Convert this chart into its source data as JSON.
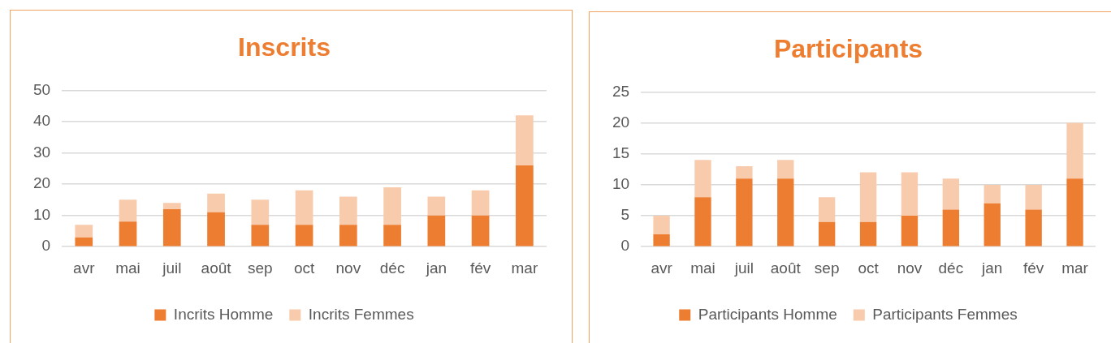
{
  "chart_data": [
    {
      "type": "bar",
      "title": "Inscrits",
      "categories": [
        "avr",
        "mai",
        "juil",
        "août",
        "sep",
        "oct",
        "nov",
        "déc",
        "jan",
        "fév",
        "mar"
      ],
      "series": [
        {
          "name": "Incrits Homme",
          "color": "#ed7d31",
          "values": [
            3,
            8,
            12,
            11,
            7,
            7,
            7,
            7,
            10,
            10,
            26
          ]
        },
        {
          "name": "Incrits Femmes",
          "color": "#f8cbad",
          "values": [
            4,
            7,
            2,
            6,
            8,
            11,
            9,
            12,
            6,
            8,
            16
          ]
        }
      ],
      "stacked": true,
      "ylim": [
        0,
        50
      ],
      "yticks": [
        0,
        10,
        20,
        30,
        40,
        50
      ],
      "grid": "y",
      "legend": "bottom"
    },
    {
      "type": "bar",
      "title": "Participants",
      "categories": [
        "avr",
        "mai",
        "juil",
        "août",
        "sep",
        "oct",
        "nov",
        "déc",
        "jan",
        "fév",
        "mar"
      ],
      "series": [
        {
          "name": "Participants Homme",
          "color": "#ed7d31",
          "values": [
            2,
            8,
            11,
            11,
            4,
            4,
            5,
            6,
            7,
            6,
            11
          ]
        },
        {
          "name": "Participants Femmes",
          "color": "#f8cbad",
          "values": [
            3,
            6,
            2,
            3,
            4,
            8,
            7,
            5,
            3,
            4,
            9
          ]
        }
      ],
      "stacked": true,
      "ylim": [
        0,
        25
      ],
      "yticks": [
        0,
        5,
        10,
        15,
        20,
        25
      ],
      "grid": "y",
      "legend": "bottom"
    }
  ]
}
